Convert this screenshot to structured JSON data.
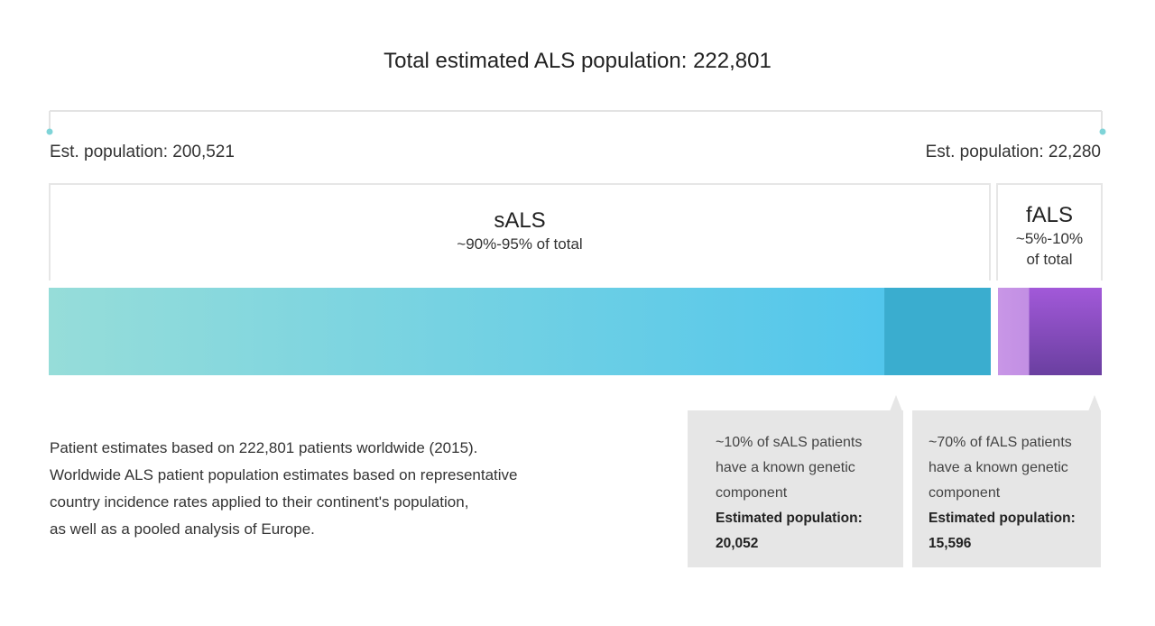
{
  "chart_data": {
    "type": "bar",
    "title": "Total estimated ALS population: 222,801",
    "orientation": "horizontal-stacked",
    "total": 222801,
    "segments": [
      {
        "name": "sALS",
        "share_label": "~90%-95% of total",
        "population_label": "Est. population: 200,521",
        "population": 200521,
        "known_genetic_population": 20052,
        "colors": [
          "#96ddd9",
          "#52c6ec"
        ],
        "genetic_color": "#3aadcf",
        "callout": {
          "lines": [
            "~10% of sALS patients",
            "have a known genetic",
            "component"
          ],
          "est_label": "Estimated population:",
          "est_value": "20,052"
        }
      },
      {
        "name": "fALS",
        "share_label_lines": [
          "~5%-10%",
          "of total"
        ],
        "population_label": "Est. population: 22,280",
        "population": 22280,
        "known_genetic_population": 15596,
        "colors": [
          "#c896e6",
          "#b57fe0"
        ],
        "genetic_colors": [
          "#a259d9",
          "#6a3fa0"
        ],
        "callout": {
          "lines": [
            "~70% of fALS patients",
            "have a known genetic",
            "component"
          ],
          "est_label": "Estimated population:",
          "est_value": "15,596"
        }
      }
    ],
    "bracket_color": "#7fd4d8"
  },
  "note_lines": [
    "Patient estimates based on 222,801 patients worldwide (2015).",
    "Worldwide ALS patient population estimates based on representative",
    "country incidence rates applied to their continent's population,",
    "as well as a pooled analysis of Europe."
  ]
}
